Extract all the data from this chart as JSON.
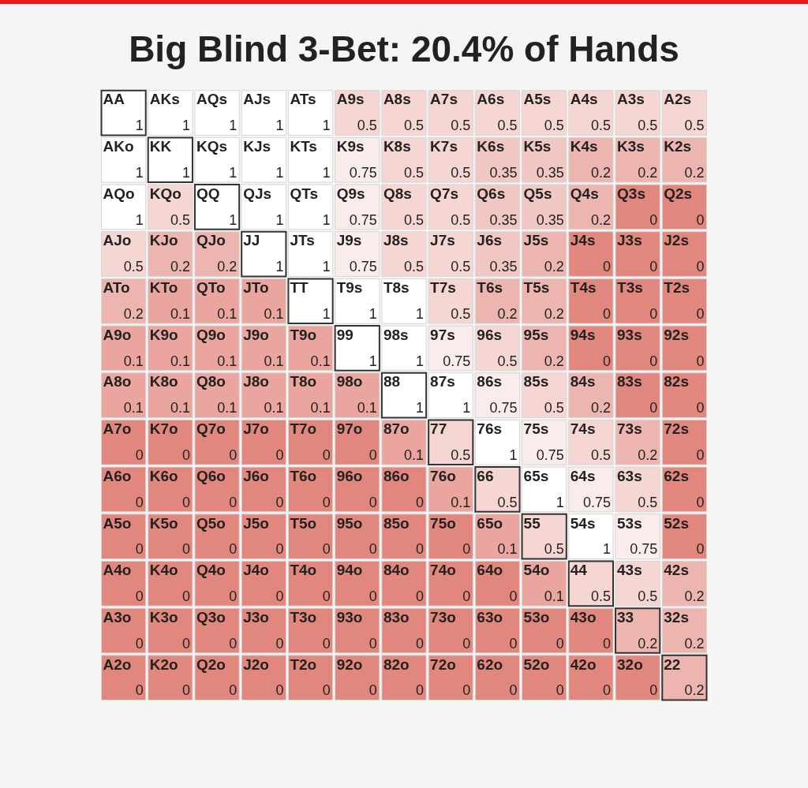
{
  "chart_data": {
    "type": "heatmap",
    "title": "Big Blind 3-Bet: 20.4% of Hands",
    "categories": [
      null,
      null,
      null,
      null,
      null,
      null,
      null,
      null,
      null,
      null,
      null,
      null,
      null
    ],
    "y_categories": [
      null,
      null,
      null,
      null,
      null,
      null,
      null,
      null,
      null,
      null,
      null,
      null,
      null
    ],
    "cells": [
      [
        1,
        1,
        1,
        1,
        1,
        0.5,
        0.5,
        0.5,
        0.5,
        0.5,
        0.5,
        0.5,
        0.5
      ],
      [
        1,
        1,
        1,
        1,
        1,
        0.75,
        0.5,
        0.5,
        0.35,
        0.35,
        0.2,
        0.2,
        0.2
      ],
      [
        1,
        0.5,
        1,
        1,
        1,
        0.75,
        0.5,
        0.5,
        0.35,
        0.35,
        0.2,
        0,
        0
      ],
      [
        0.5,
        0.2,
        0.2,
        1,
        1,
        0.75,
        0.5,
        0.5,
        0.35,
        0.2,
        0,
        0,
        0
      ],
      [
        0.2,
        0.1,
        0.1,
        0.1,
        1,
        1,
        1,
        0.5,
        0.2,
        0.2,
        0,
        0,
        0
      ],
      [
        0.1,
        0.1,
        0.1,
        0.1,
        0.1,
        1,
        1,
        0.75,
        0.5,
        0.2,
        0,
        0,
        0
      ],
      [
        0.1,
        0.1,
        0.1,
        0.1,
        0.1,
        0.1,
        1,
        1,
        0.75,
        0.5,
        0.2,
        0,
        0
      ],
      [
        0,
        0,
        0,
        0,
        0,
        0,
        0.1,
        0.5,
        1,
        0.75,
        0.5,
        0.2,
        0
      ],
      [
        0,
        0,
        0,
        0,
        0,
        0,
        0,
        0.1,
        0.5,
        1,
        0.75,
        0.5,
        0
      ],
      [
        0,
        0,
        0,
        0,
        0,
        0,
        0,
        0,
        0.1,
        0.5,
        1,
        0.75,
        0
      ],
      [
        0,
        0,
        0,
        0,
        0,
        0,
        0,
        0,
        0,
        0.1,
        0.5,
        0.5,
        0.2
      ],
      [
        0,
        0,
        0,
        0,
        0,
        0,
        0,
        0,
        0,
        0,
        0,
        0.2,
        0.2
      ],
      [
        0,
        0,
        0,
        0,
        0,
        0,
        0,
        0,
        0,
        0,
        0,
        0,
        0.2
      ]
    ],
    "data_labels": true,
    "annotations": [
      "AA",
      "AKs",
      "AQs",
      "AJs",
      "ATs",
      "A9s",
      "A8s",
      "A7s",
      "A6s",
      "A5s",
      "A4s",
      "A3s",
      "A2s",
      "AKo",
      "KK",
      "KQs",
      "KJs",
      "KTs",
      "K9s",
      "K8s",
      "K7s",
      "K6s",
      "K5s",
      "K4s",
      "K3s",
      "K2s",
      "AQo",
      "KQo",
      "QQ",
      "QJs",
      "QTs",
      "Q9s",
      "Q8s",
      "Q7s",
      "Q6s",
      "Q5s",
      "Q4s",
      "Q3s",
      "Q2s",
      "AJo",
      "KJo",
      "QJo",
      "JJ",
      "JTs",
      "J9s",
      "J8s",
      "J7s",
      "J6s",
      "J5s",
      "J4s",
      "J3s",
      "J2s",
      "ATo",
      "KTo",
      "QTo",
      "JTo",
      "TT",
      "T9s",
      "T8s",
      "T7s",
      "T6s",
      "T5s",
      "T4s",
      "T3s",
      "T2s",
      "A9o",
      "K9o",
      "Q9o",
      "J9o",
      "T9o",
      "99",
      "98s",
      "97s",
      "96s",
      "95s",
      "94s",
      "93s",
      "92s",
      "A8o",
      "K8o",
      "Q8o",
      "J8o",
      "T8o",
      "98o",
      "88",
      "87s",
      "86s",
      "85s",
      "84s",
      "83s",
      "82s",
      "A7o",
      "K7o",
      "Q7o",
      "J7o",
      "T7o",
      "97o",
      "87o",
      "77",
      "76s",
      "75s",
      "74s",
      "73s",
      "72s",
      "A6o",
      "K6o",
      "Q6o",
      "J6o",
      "T6o",
      "96o",
      "86o",
      "76o",
      "66",
      "65s",
      "64s",
      "63s",
      "62s",
      "A5o",
      "K5o",
      "Q5o",
      "J5o",
      "T5o",
      "95o",
      "85o",
      "75o",
      "65o",
      "55",
      "54s",
      "53s",
      "52s",
      "A4o",
      "K4o",
      "Q4o",
      "J4o",
      "T4o",
      "94o",
      "84o",
      "74o",
      "64o",
      "54o",
      "44",
      "43s",
      "42s",
      "A3o",
      "K3o",
      "Q3o",
      "J3o",
      "T3o",
      "93o",
      "83o",
      "73o",
      "63o",
      "53o",
      "43o",
      "33",
      "32s",
      "A2o",
      "K2o",
      "Q2o",
      "J2o",
      "T2o",
      "92o",
      "82o",
      "72o",
      "62o",
      "52o",
      "42o",
      "32o",
      "22"
    ]
  }
}
